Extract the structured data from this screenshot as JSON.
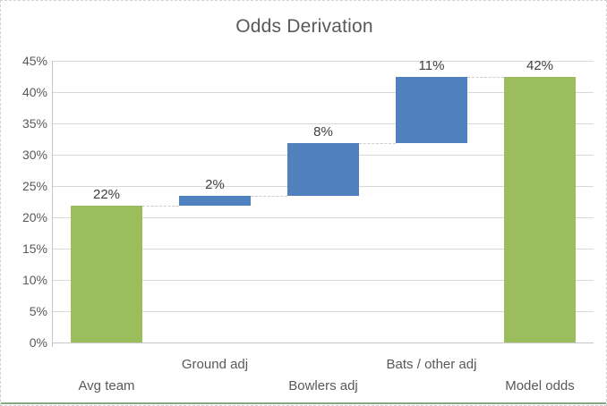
{
  "window": {
    "title_label": "Odds Derivation"
  },
  "chart_data": {
    "type": "bar",
    "subtype": "waterfall",
    "title": "Odds Derivation",
    "xlabel": "",
    "ylabel": "",
    "ylim": [
      0,
      45
    ],
    "ytick_step": 5,
    "ytick_labels": [
      "0%",
      "5%",
      "10%",
      "15%",
      "20%",
      "25%",
      "30%",
      "35%",
      "40%",
      "45%"
    ],
    "grid": true,
    "legend": "none",
    "categories": [
      "Avg team",
      "Ground adj",
      "Bowlers adj",
      "Bats / other adj",
      "Model odds"
    ],
    "displayed_values": [
      "22%",
      "2%",
      "8%",
      "11%",
      "42%"
    ],
    "bars": [
      {
        "category": "Avg team",
        "role": "total",
        "base": 0,
        "top": 21.8,
        "label": "22%",
        "label_row": "lower"
      },
      {
        "category": "Ground adj",
        "role": "delta",
        "base": 21.8,
        "top": 23.5,
        "label": "2%",
        "label_row": "upper"
      },
      {
        "category": "Bowlers adj",
        "role": "delta",
        "base": 23.5,
        "top": 31.8,
        "label": "8%",
        "label_row": "upper_mid"
      },
      {
        "category": "Bats / other adj",
        "role": "delta",
        "base": 31.8,
        "top": 42.4,
        "label": "11%",
        "label_row": "upper"
      },
      {
        "category": "Model odds",
        "role": "total",
        "base": 0,
        "top": 42.4,
        "label": "42%",
        "label_row": "lower"
      }
    ],
    "colors": {
      "total_bar": "#9cbd5c",
      "delta_bar": "#4e81bd",
      "gridline": "#d9d9d9",
      "axis_line": "#c6c6c6",
      "connector": "#cccccc",
      "title_text": "#595959",
      "axis_text": "#595959",
      "data_label_text": "#404040",
      "frame_border": "#d2d2d2",
      "bottom_sheet_line": "#86a886"
    },
    "layout_hint": {
      "category_label_rows": "staggered"
    }
  }
}
